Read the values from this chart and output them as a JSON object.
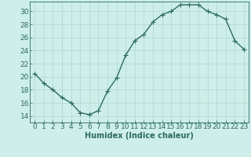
{
  "x": [
    0,
    1,
    2,
    3,
    4,
    5,
    6,
    7,
    8,
    9,
    10,
    11,
    12,
    13,
    14,
    15,
    16,
    17,
    18,
    19,
    20,
    21,
    22,
    23
  ],
  "y": [
    20.5,
    19.0,
    18.0,
    16.8,
    16.0,
    14.5,
    14.2,
    14.8,
    17.8,
    19.8,
    23.3,
    25.5,
    26.5,
    28.4,
    29.5,
    30.0,
    31.0,
    31.0,
    31.0,
    30.0,
    29.5,
    28.8,
    25.5,
    24.2
  ],
  "xlabel": "Humidex (Indice chaleur)",
  "background_color": "#cdeee9",
  "line_color": "#2e6b5e",
  "grid_color": "#b0d8d0",
  "ylim": [
    13,
    31.5
  ],
  "xlim": [
    -0.5,
    23.5
  ],
  "yticks": [
    14,
    16,
    18,
    20,
    22,
    24,
    26,
    28,
    30
  ],
  "xticks": [
    0,
    1,
    2,
    3,
    4,
    5,
    6,
    7,
    8,
    9,
    10,
    11,
    12,
    13,
    14,
    15,
    16,
    17,
    18,
    19,
    20,
    21,
    22,
    23
  ],
  "marker": "+",
  "marker_size": 4,
  "line_width": 1.0,
  "xlabel_fontsize": 7,
  "tick_fontsize": 6.5
}
